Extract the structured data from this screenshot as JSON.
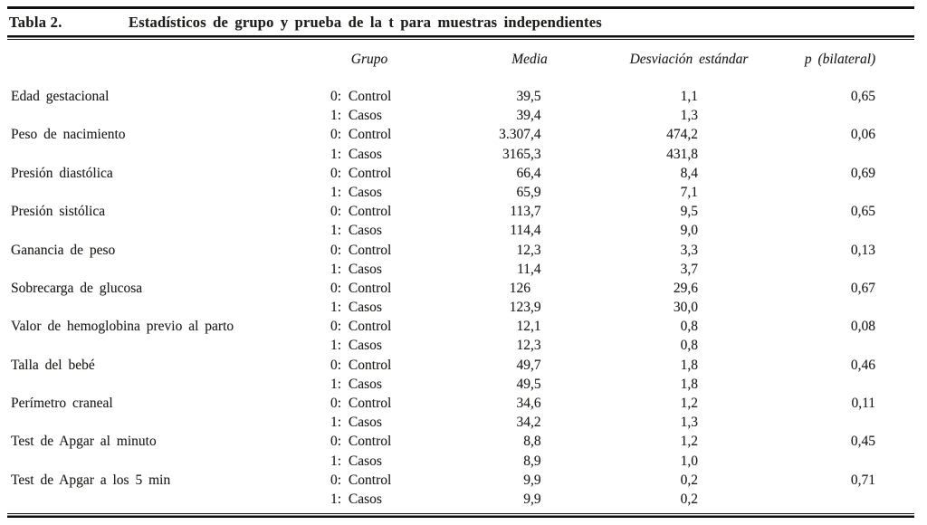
{
  "table": {
    "label": "Tabla 2.",
    "title": "Estadísticos de grupo y prueba de la t para muestras independientes",
    "columns": {
      "grupo": "Grupo",
      "media": "Media",
      "desviacion": "Desviación estándar",
      "p": "p (bilateral)"
    },
    "group_labels": [
      "0: Control",
      "1: Casos"
    ],
    "rows": [
      {
        "variable": "Edad gestacional",
        "media": [
          "39,5",
          "39,4"
        ],
        "de": [
          "1,1",
          "1,3"
        ],
        "p": "0,65"
      },
      {
        "variable": "Peso de nacimiento",
        "media": [
          "3.307,4",
          "3165,3"
        ],
        "de": [
          "474,2",
          "431,8"
        ],
        "p": "0,06"
      },
      {
        "variable": "Presión diastólica",
        "media": [
          "66,4",
          "65,9"
        ],
        "de": [
          "8,4",
          "7,1"
        ],
        "p": "0,69"
      },
      {
        "variable": "Presión sistólica",
        "media": [
          "113,7",
          "114,4"
        ],
        "de": [
          "9,5",
          "9,0"
        ],
        "p": "0,65"
      },
      {
        "variable": "Ganancia de peso",
        "media": [
          "12,3",
          "11,4"
        ],
        "de": [
          "3,3",
          "3,7"
        ],
        "p": "0,13"
      },
      {
        "variable": "Sobrecarga de glucosa",
        "media": [
          "126",
          "123,9"
        ],
        "de": [
          "29,6",
          "30,0"
        ],
        "p": "0,67"
      },
      {
        "variable": "Valor de hemoglobina previo al parto",
        "media": [
          "12,1",
          "12,3"
        ],
        "de": [
          "0,8",
          "0,8"
        ],
        "p": "0,08"
      },
      {
        "variable": "Talla del bebé",
        "media": [
          "49,7",
          "49,5"
        ],
        "de": [
          "1,8",
          "1,8"
        ],
        "p": "0,46"
      },
      {
        "variable": "Perímetro craneal",
        "media": [
          "34,6",
          "34,2"
        ],
        "de": [
          "1,2",
          "1,3"
        ],
        "p": "0,11"
      },
      {
        "variable": "Test de Apgar al minuto",
        "media": [
          "8,8",
          "8,9"
        ],
        "de": [
          "1,2",
          "1,0"
        ],
        "p": "0,45"
      },
      {
        "variable": "Test de Apgar a los 5 min",
        "media": [
          "9,9",
          "9,9"
        ],
        "de": [
          "0,2",
          "0,2"
        ],
        "p": "0,71"
      }
    ]
  },
  "colors": {
    "text": "#1e1e1c",
    "rule": "#101010",
    "background": "#ffffff"
  }
}
